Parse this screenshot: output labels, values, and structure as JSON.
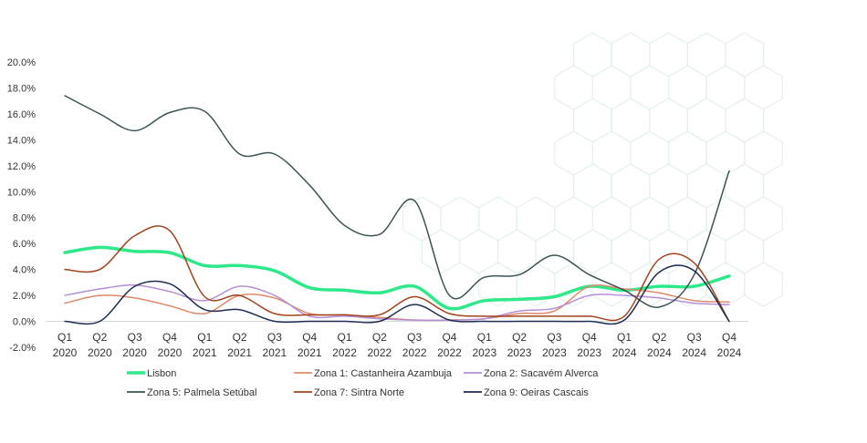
{
  "chart_data": {
    "type": "line",
    "title": "",
    "xlabel": "",
    "ylabel": "",
    "categories": [
      [
        "Q1",
        "2020"
      ],
      [
        "Q2",
        "2020"
      ],
      [
        "Q3",
        "2020"
      ],
      [
        "Q4",
        "2020"
      ],
      [
        "Q1",
        "2021"
      ],
      [
        "Q2",
        "2021"
      ],
      [
        "Q3",
        "2021"
      ],
      [
        "Q4",
        "2021"
      ],
      [
        "Q1",
        "2022"
      ],
      [
        "Q2",
        "2022"
      ],
      [
        "Q3",
        "2022"
      ],
      [
        "Q4",
        "2022"
      ],
      [
        "Q1",
        "2023"
      ],
      [
        "Q2",
        "2023"
      ],
      [
        "Q3",
        "2023"
      ],
      [
        "Q4",
        "2023"
      ],
      [
        "Q1",
        "2024"
      ],
      [
        "Q2",
        "2024"
      ],
      [
        "Q3",
        "2024"
      ],
      [
        "Q4",
        "2024"
      ]
    ],
    "ylim": [
      -2,
      20
    ],
    "yticks": [
      -2,
      0,
      2,
      4,
      6,
      8,
      10,
      12,
      14,
      16,
      18,
      20
    ],
    "ytick_labels": [
      "-2.0%",
      "0.0%",
      "2.0%",
      "4.0%",
      "6.0%",
      "8.0%",
      "10.0%",
      "12.0%",
      "14.0%",
      "16.0%",
      "18.0%",
      "20.0%"
    ],
    "grid": false,
    "legend_position": "bottom",
    "series": [
      {
        "name": "Lisbon",
        "color": "#2ee88a",
        "width": 3.5,
        "values": [
          5.3,
          5.7,
          5.4,
          5.3,
          4.3,
          4.3,
          3.9,
          2.6,
          2.4,
          2.2,
          2.7,
          1.0,
          1.6,
          1.7,
          1.9,
          2.7,
          2.4,
          2.7,
          2.7,
          3.5
        ]
      },
      {
        "name": "Zona 1: Castanheira Azambuja",
        "color": "#e0896a",
        "width": 1.5,
        "values": [
          1.4,
          2.0,
          1.8,
          1.2,
          0.6,
          2.0,
          1.8,
          0.6,
          0.5,
          0.3,
          0.1,
          0.1,
          0.2,
          0.6,
          0.8,
          2.7,
          2.5,
          2.2,
          1.6,
          1.5
        ]
      },
      {
        "name": "Zona 2: Sacavém Alverca",
        "color": "#b48fd6",
        "width": 1.5,
        "values": [
          2.0,
          2.5,
          2.8,
          2.3,
          1.6,
          2.7,
          2.0,
          0.4,
          0.4,
          0.2,
          0.1,
          0.1,
          0.2,
          0.8,
          1.0,
          2.0,
          2.0,
          1.8,
          1.4,
          1.3
        ]
      },
      {
        "name": "Zona 5: Palmela Setúbal",
        "color": "#3d5357",
        "width": 1.5,
        "values": [
          17.4,
          16.0,
          14.7,
          16.1,
          16.2,
          12.9,
          12.9,
          10.5,
          7.4,
          6.7,
          9.3,
          2.0,
          3.4,
          3.6,
          5.1,
          3.6,
          2.4,
          1.1,
          3.6,
          11.6
        ]
      },
      {
        "name": "Zona 7: Sintra Norte",
        "color": "#a0441c",
        "width": 1.5,
        "values": [
          4.0,
          4.0,
          6.6,
          7.0,
          1.9,
          2.0,
          0.6,
          0.5,
          0.5,
          0.5,
          1.9,
          0.6,
          0.4,
          0.4,
          0.4,
          0.4,
          0.4,
          4.8,
          4.5,
          0.0
        ]
      },
      {
        "name": "Zona 9: Oeiras Cascais",
        "color": "#1f2d52",
        "width": 1.5,
        "values": [
          0.0,
          0.0,
          2.7,
          2.9,
          0.9,
          0.9,
          0.0,
          0.0,
          0.0,
          0.0,
          1.3,
          0.1,
          0.0,
          0.0,
          0.0,
          0.0,
          0.1,
          3.8,
          3.9,
          0.0
        ]
      }
    ]
  }
}
